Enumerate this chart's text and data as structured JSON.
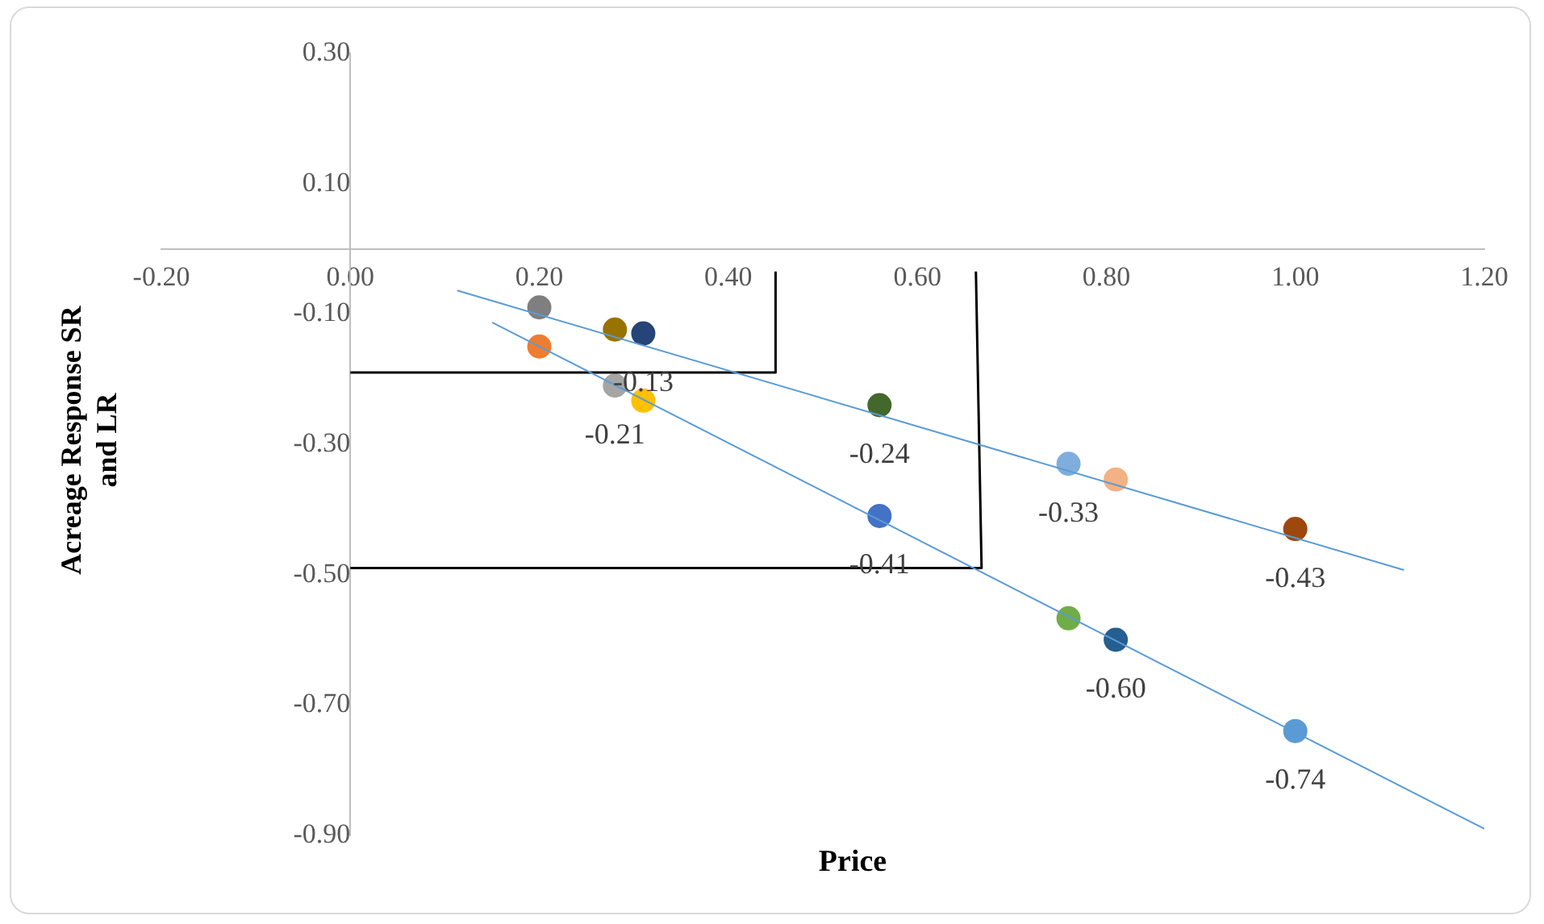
{
  "chart_data": {
    "type": "scatter",
    "xlabel": "Price",
    "ylabel": "Acreage Response SR and LR",
    "xlim": [
      -0.2,
      1.2
    ],
    "ylim": [
      -0.9,
      0.3
    ],
    "xticks": [
      {
        "value": -0.2,
        "label": "-0.20"
      },
      {
        "value": 0,
        "label": "0.00"
      },
      {
        "value": 0.2,
        "label": "0.20"
      },
      {
        "value": 0.4,
        "label": "0.40"
      },
      {
        "value": 0.6,
        "label": "0.60"
      },
      {
        "value": 0.8,
        "label": "0.80"
      },
      {
        "value": 1,
        "label": "1.00"
      },
      {
        "value": 1.2,
        "label": "1.20"
      }
    ],
    "yticks": [
      {
        "value": 0.3,
        "label": "0.30"
      },
      {
        "value": 0.1,
        "label": "0.10"
      },
      {
        "value": -0.1,
        "label": "-0.10"
      },
      {
        "value": -0.3,
        "label": "-0.30"
      },
      {
        "value": -0.5,
        "label": "-0.50"
      },
      {
        "value": -0.7,
        "label": "-0.70"
      },
      {
        "value": -0.9,
        "label": "-0.90"
      }
    ],
    "grid": false,
    "legend": false,
    "series": [
      {
        "type": "line",
        "marker": "none",
        "color": "#5b9bd5",
        "x": [
          0.113,
          1.115
        ],
        "values": [
          -0.064,
          -0.493
        ]
      },
      {
        "type": "line",
        "marker": "none",
        "color": "#5b9bd5",
        "x": [
          0.15,
          1.2
        ],
        "values": [
          -0.113,
          -0.89
        ]
      },
      {
        "type": "line",
        "marker": "none",
        "color": "#000000",
        "x": [
          0,
          0.45,
          0.45
        ],
        "values": [
          -0.19,
          -0.19,
          -0.035
        ]
      },
      {
        "type": "line",
        "marker": "none",
        "color": "#000000",
        "x": [
          0,
          0.668,
          0.662
        ],
        "values": [
          -0.49,
          -0.49,
          -0.035
        ]
      },
      {
        "marker": "circle",
        "x": [
          0.2,
          0.28,
          0.31,
          0.56,
          0.76,
          0.81,
          1.0
        ],
        "values": [
          -0.09,
          -0.124,
          -0.13,
          -0.24,
          -0.33,
          -0.354,
          -0.43
        ],
        "colors": [
          "#7f7f7f",
          "#997300",
          "#264478",
          "#43682b",
          "#7faedd",
          "#f4b183",
          "#9e480e"
        ],
        "value_labels": [
          null,
          null,
          "-0.13",
          "-0.24",
          "-0.33",
          null,
          "-0.43"
        ]
      },
      {
        "marker": "circle",
        "x": [
          0.2,
          0.28,
          0.31,
          0.56,
          0.76,
          0.81,
          1.0
        ],
        "values": [
          -0.15,
          -0.21,
          -0.233,
          -0.41,
          -0.567,
          -0.6,
          -0.74
        ],
        "colors": [
          "#ed7d31",
          "#a5a5a5",
          "#ffc000",
          "#4472c4",
          "#70ad47",
          "#255e91",
          "#5b9bd5"
        ],
        "value_labels": [
          null,
          "-0.21",
          null,
          "-0.41",
          null,
          "-0.60",
          "-0.74"
        ]
      }
    ]
  }
}
